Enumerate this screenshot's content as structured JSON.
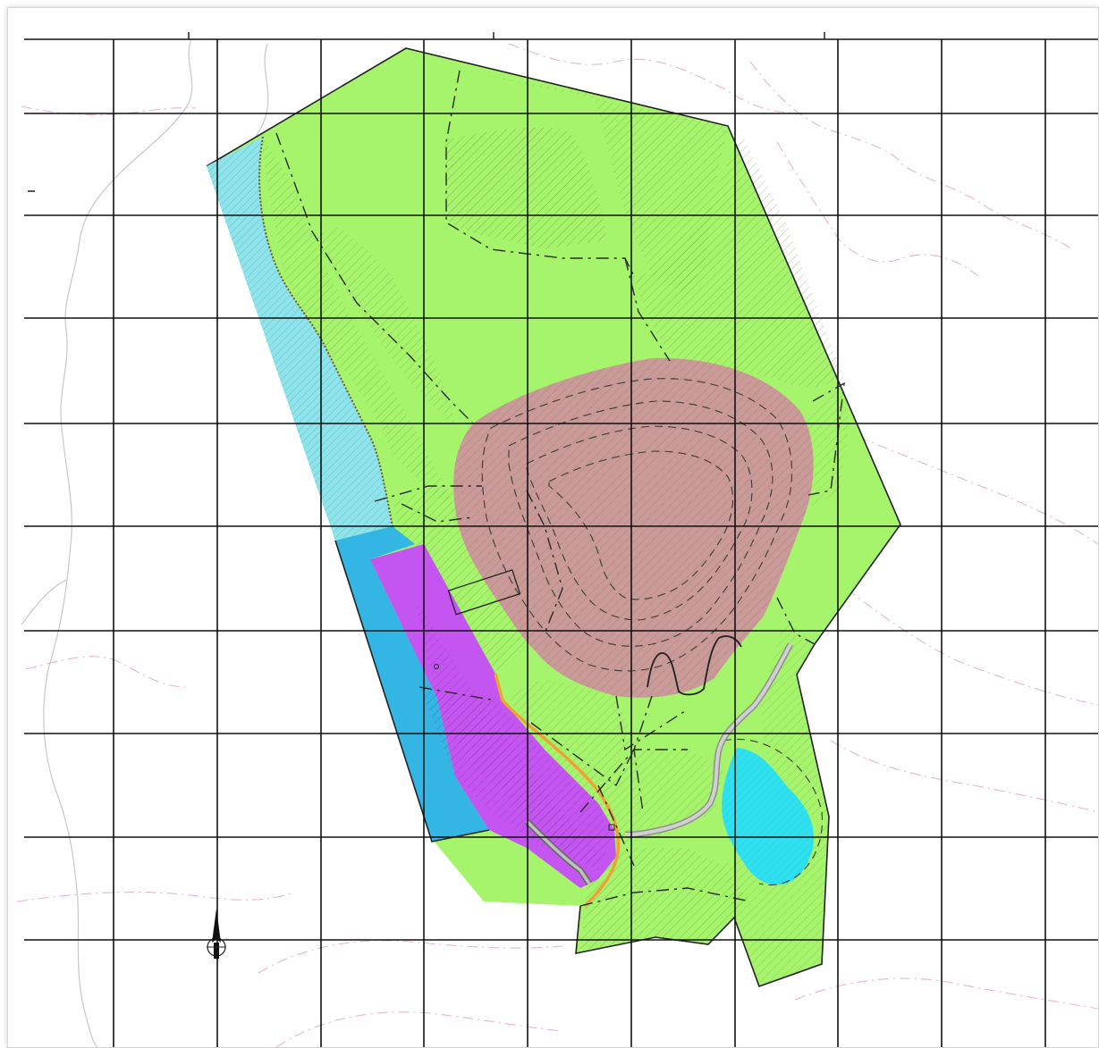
{
  "map": {
    "colors": {
      "greenZone": "#a6f46b",
      "pitZone": "#c99a97",
      "lightCyanZone": "#8fe3ea",
      "blueZone": "#33b6e3",
      "purpleZone": "#c455f0",
      "pondZone": "#2fe1ef",
      "roadStroke": "#a9a9a9",
      "orangeEdge": "#f0a136",
      "gridLine": "#111111",
      "contourPink": "#e9b7c0",
      "contourGrey": "#c8c8c8"
    },
    "zones": [
      "green-zone",
      "pit-zone",
      "light-cyan-zone",
      "blue-zone",
      "purple-zone",
      "pond-zone"
    ],
    "icons": [
      "north-arrow-icon"
    ],
    "grid": {
      "columns": 11,
      "rows": 9
    }
  }
}
